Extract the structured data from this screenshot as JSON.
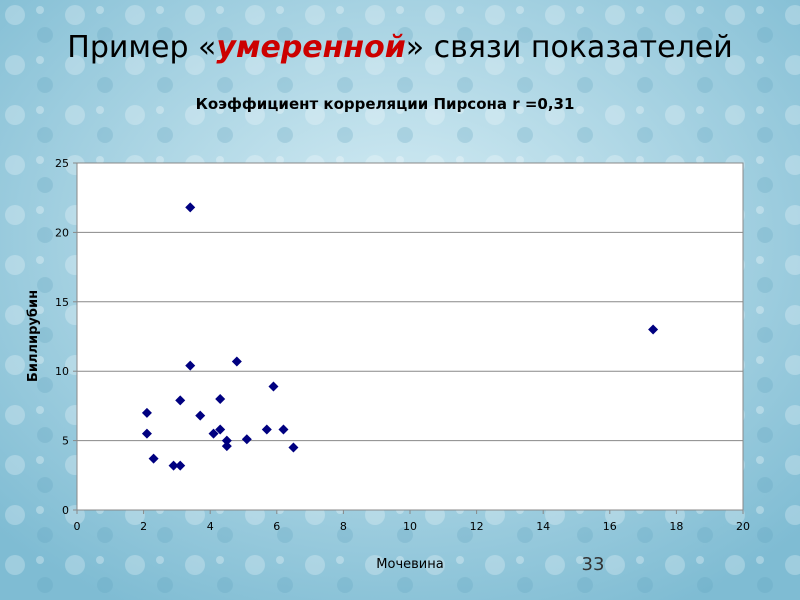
{
  "slide": {
    "title_parts": [
      "Пример «",
      "умеренной",
      "» связи показателей"
    ],
    "page_number": 33
  },
  "chart_data": {
    "type": "scatter",
    "title": "Коэффициент корреляции Пирсона r =0,31",
    "x_label": "Мочевина",
    "y_label": "Биллирубин",
    "series": [
      {
        "name": "Биллирубин",
        "color": "#000080",
        "x": [
          2.1,
          2.1,
          2.3,
          3.4,
          3.4,
          3.1,
          2.9,
          3.1,
          3.7,
          4.3,
          4.1,
          4.3,
          4.5,
          4.5,
          4.8,
          5.1,
          5.7,
          5.9,
          6.2,
          6.5,
          17.3
        ],
        "values": [
          7.0,
          5.5,
          3.7,
          21.8,
          10.4,
          7.9,
          3.2,
          3.2,
          6.8,
          8.0,
          5.5,
          5.8,
          5.0,
          4.6,
          10.7,
          5.1,
          5.8,
          8.9,
          5.8,
          4.5,
          13.0
        ]
      }
    ],
    "xlim": [
      0,
      20
    ],
    "xticks": [
      0,
      2,
      4,
      6,
      8,
      10,
      12,
      14,
      16,
      18,
      20
    ],
    "ylim": [
      0,
      25
    ],
    "yticks": [
      0,
      5,
      10,
      15,
      20,
      25
    ],
    "grid": true
  }
}
